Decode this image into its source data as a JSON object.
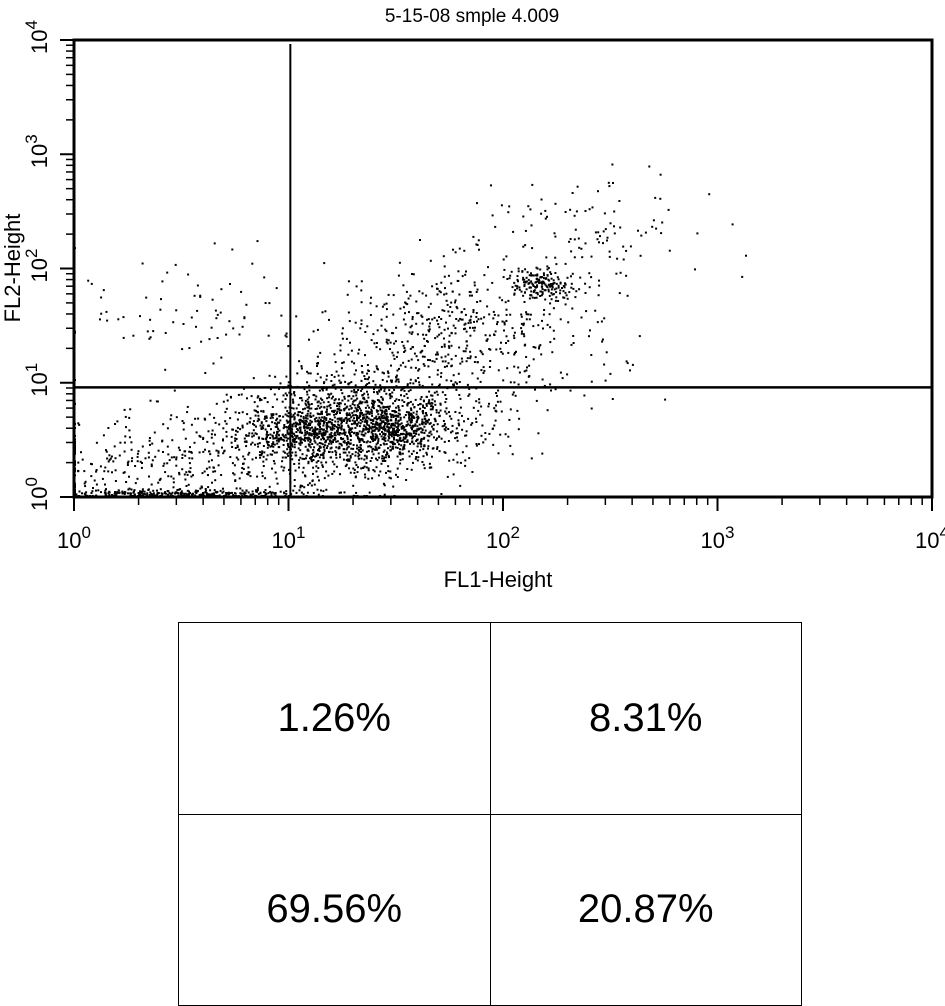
{
  "chart_data": {
    "type": "scatter",
    "title": "5-15-08 smple 4.009",
    "xlabel": "FL1-Height",
    "ylabel": "FL2-Height",
    "x_scale": "log",
    "y_scale": "log",
    "xlim": [
      1,
      10000
    ],
    "ylim": [
      1,
      10000
    ],
    "x_ticks": [
      {
        "base": "10",
        "exp": "0"
      },
      {
        "base": "10",
        "exp": "1"
      },
      {
        "base": "10",
        "exp": "2"
      },
      {
        "base": "10",
        "exp": "3"
      },
      {
        "base": "10",
        "exp": "4"
      }
    ],
    "y_ticks": [
      {
        "base": "10",
        "exp": "0"
      },
      {
        "base": "10",
        "exp": "1"
      },
      {
        "base": "10",
        "exp": "2"
      },
      {
        "base": "10",
        "exp": "3"
      },
      {
        "base": "10",
        "exp": "4"
      }
    ],
    "gates": {
      "x": 10.2,
      "y": 9.1
    },
    "point_color": "#000000",
    "clusters": [
      {
        "name": "main",
        "x": 20,
        "y": 4,
        "sx": 0.28,
        "sy": 0.22,
        "n": 1600
      },
      {
        "name": "dense-a",
        "x": 11,
        "y": 3.8,
        "sx": 0.1,
        "sy": 0.08,
        "n": 200
      },
      {
        "name": "dense-b",
        "x": 30,
        "y": 4.2,
        "sx": 0.1,
        "sy": 0.08,
        "n": 200
      },
      {
        "name": "mid-diagonal",
        "x": 60,
        "y": 25,
        "sx": 0.35,
        "sy": 0.35,
        "n": 600
      },
      {
        "name": "upper-right",
        "x": 150,
        "y": 70,
        "sx": 0.08,
        "sy": 0.06,
        "n": 170
      },
      {
        "name": "low-left",
        "x": 3,
        "y": 2,
        "sx": 0.35,
        "sy": 0.22,
        "n": 350
      },
      {
        "name": "baseline",
        "x": 3,
        "y": 1.05,
        "sx": 0.35,
        "sy": 0.02,
        "n": 300
      },
      {
        "name": "sparse-upper-left",
        "x": 4,
        "y": 40,
        "sx": 0.3,
        "sy": 0.3,
        "n": 70
      },
      {
        "name": "sparse-right",
        "x": 250,
        "y": 200,
        "sx": 0.25,
        "sy": 0.3,
        "n": 120
      }
    ],
    "quadrants": {
      "upper_left": "1.26%",
      "upper_right": "8.31%",
      "lower_left": "69.56%",
      "lower_right": "20.87%"
    }
  }
}
